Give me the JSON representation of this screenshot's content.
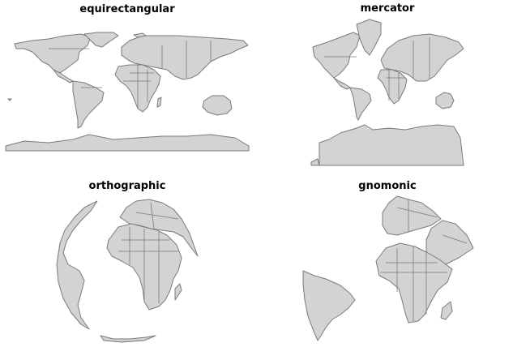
{
  "panels": [
    {
      "title": "equirectangular",
      "projection": "equirectangular"
    },
    {
      "title": "mercator",
      "projection": "mercator"
    },
    {
      "title": "orthographic",
      "projection": "orthographic"
    },
    {
      "title": "gnomonic",
      "projection": "gnomonic"
    }
  ],
  "style": {
    "land_fill": "#d3d3d3",
    "border_color": "#7a7a7a",
    "background": "#ffffff"
  }
}
